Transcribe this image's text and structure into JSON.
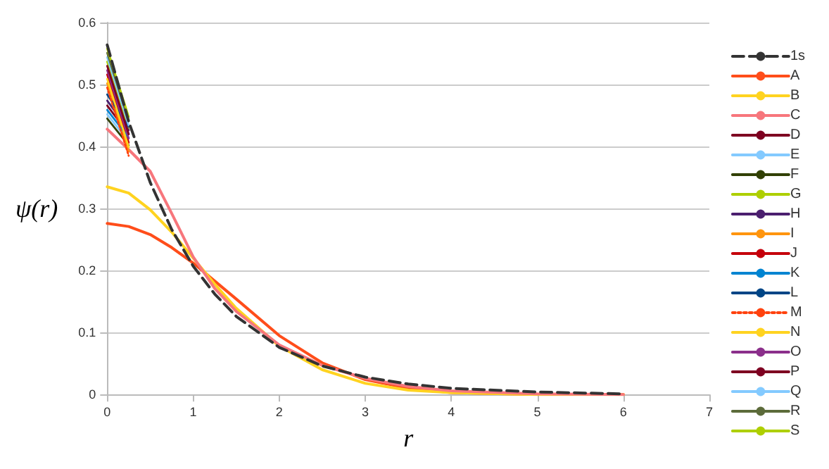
{
  "chart_data": {
    "type": "line",
    "xlabel": "r",
    "ylabel": "ψ(r)",
    "x": [
      0,
      0.25,
      0.5,
      0.75,
      1,
      1.25,
      1.5,
      2,
      2.5,
      3,
      3.5,
      4,
      5,
      6
    ],
    "xlim": [
      0,
      7
    ],
    "xticks": [
      0,
      1,
      2,
      3,
      4,
      5,
      6,
      7
    ],
    "ylim": [
      0,
      0.6
    ],
    "yticks": [
      0,
      0.1,
      0.2,
      0.3,
      0.4,
      0.5,
      0.6
    ],
    "grid": "y",
    "legend": "right",
    "marker": "none",
    "line_style": "solid",
    "series": [
      {
        "name": "1s",
        "color": "#333333",
        "line_style": "dashed",
        "values": [
          0.564,
          0.44,
          0.342,
          0.266,
          0.207,
          0.162,
          0.126,
          0.076,
          0.046,
          0.028,
          0.017,
          0.01,
          0.004,
          0.001
        ]
      },
      {
        "name": "A",
        "color": "#ff4d1a",
        "values": [
          0.276,
          0.271,
          0.258,
          0.237,
          0.212,
          0.183,
          0.154,
          0.095,
          0.051,
          0.024,
          0.01,
          0.003,
          0,
          0
        ]
      },
      {
        "name": "B",
        "color": "#ffd320",
        "values": [
          0.335,
          0.325,
          0.298,
          0.262,
          0.22,
          0.178,
          0.139,
          0.078,
          0.04,
          0.018,
          0.007,
          0.003,
          0,
          0
        ]
      },
      {
        "name": "C",
        "color": "#f7767c",
        "values": [
          0.428,
          0.395,
          0.36,
          0.292,
          0.222,
          0.171,
          0.134,
          0.08,
          0.047,
          0.026,
          0.013,
          0.006,
          0.001,
          0
        ]
      },
      {
        "name": "D",
        "color": "#7e0021",
        "values": [
          0.466,
          0.42,
          null,
          null,
          null,
          null,
          null,
          null,
          null,
          null,
          null,
          null,
          null,
          null
        ]
      },
      {
        "name": "E",
        "color": "#83caff",
        "values": [
          0.452,
          0.408,
          null,
          null,
          null,
          null,
          null,
          null,
          null,
          null,
          null,
          null,
          null,
          null
        ]
      },
      {
        "name": "F",
        "color": "#314004",
        "values": [
          0.445,
          0.402,
          null,
          null,
          null,
          null,
          null,
          null,
          null,
          null,
          null,
          null,
          null,
          null
        ]
      },
      {
        "name": "G",
        "color": "#aecf00",
        "values": [
          0.537,
          0.427,
          null,
          null,
          null,
          null,
          null,
          null,
          null,
          null,
          null,
          null,
          null,
          null
        ]
      },
      {
        "name": "H",
        "color": "#4b1f6f",
        "values": [
          0.474,
          0.426,
          null,
          null,
          null,
          null,
          null,
          null,
          null,
          null,
          null,
          null,
          null,
          null
        ]
      },
      {
        "name": "I",
        "color": "#ff950e",
        "values": [
          0.502,
          0.392,
          null,
          null,
          null,
          null,
          null,
          null,
          null,
          null,
          null,
          null,
          null,
          null
        ]
      },
      {
        "name": "J",
        "color": "#c5000b",
        "values": [
          0.516,
          0.406,
          null,
          null,
          null,
          null,
          null,
          null,
          null,
          null,
          null,
          null,
          null,
          null
        ]
      },
      {
        "name": "K",
        "color": "#0084d1",
        "values": [
          0.459,
          0.414,
          null,
          null,
          null,
          null,
          null,
          null,
          null,
          null,
          null,
          null,
          null,
          null
        ]
      },
      {
        "name": "L",
        "color": "#004586",
        "values": [
          0.484,
          0.432,
          null,
          null,
          null,
          null,
          null,
          null,
          null,
          null,
          null,
          null,
          null,
          null
        ]
      },
      {
        "name": "M",
        "color": "#ff420e",
        "line_style": "dotted",
        "values": [
          0.495,
          0.385,
          null,
          null,
          null,
          null,
          null,
          null,
          null,
          null,
          null,
          null,
          null,
          null
        ]
      },
      {
        "name": "N",
        "color": "#ffd320",
        "values": [
          0.509,
          0.399,
          null,
          null,
          null,
          null,
          null,
          null,
          null,
          null,
          null,
          null,
          null,
          null
        ]
      },
      {
        "name": "O",
        "color": "#8b2f8b",
        "values": [
          0.523,
          0.413,
          null,
          null,
          null,
          null,
          null,
          null,
          null,
          null,
          null,
          null,
          null,
          null
        ]
      },
      {
        "name": "P",
        "color": "#7e0021",
        "values": [
          0.53,
          0.42,
          null,
          null,
          null,
          null,
          null,
          null,
          null,
          null,
          null,
          null,
          null,
          null
        ]
      },
      {
        "name": "Q",
        "color": "#83caff",
        "values": [
          0.544,
          0.434,
          null,
          null,
          null,
          null,
          null,
          null,
          null,
          null,
          null,
          null,
          null,
          null
        ]
      },
      {
        "name": "R",
        "color": "#5c6b3a",
        "values": [
          0.551,
          0.441,
          null,
          null,
          null,
          null,
          null,
          null,
          null,
          null,
          null,
          null,
          null,
          null
        ]
      },
      {
        "name": "S",
        "color": "#aecf00",
        "values": [
          0.558,
          0.448,
          null,
          null,
          null,
          null,
          null,
          null,
          null,
          null,
          null,
          null,
          null,
          null
        ]
      }
    ]
  }
}
